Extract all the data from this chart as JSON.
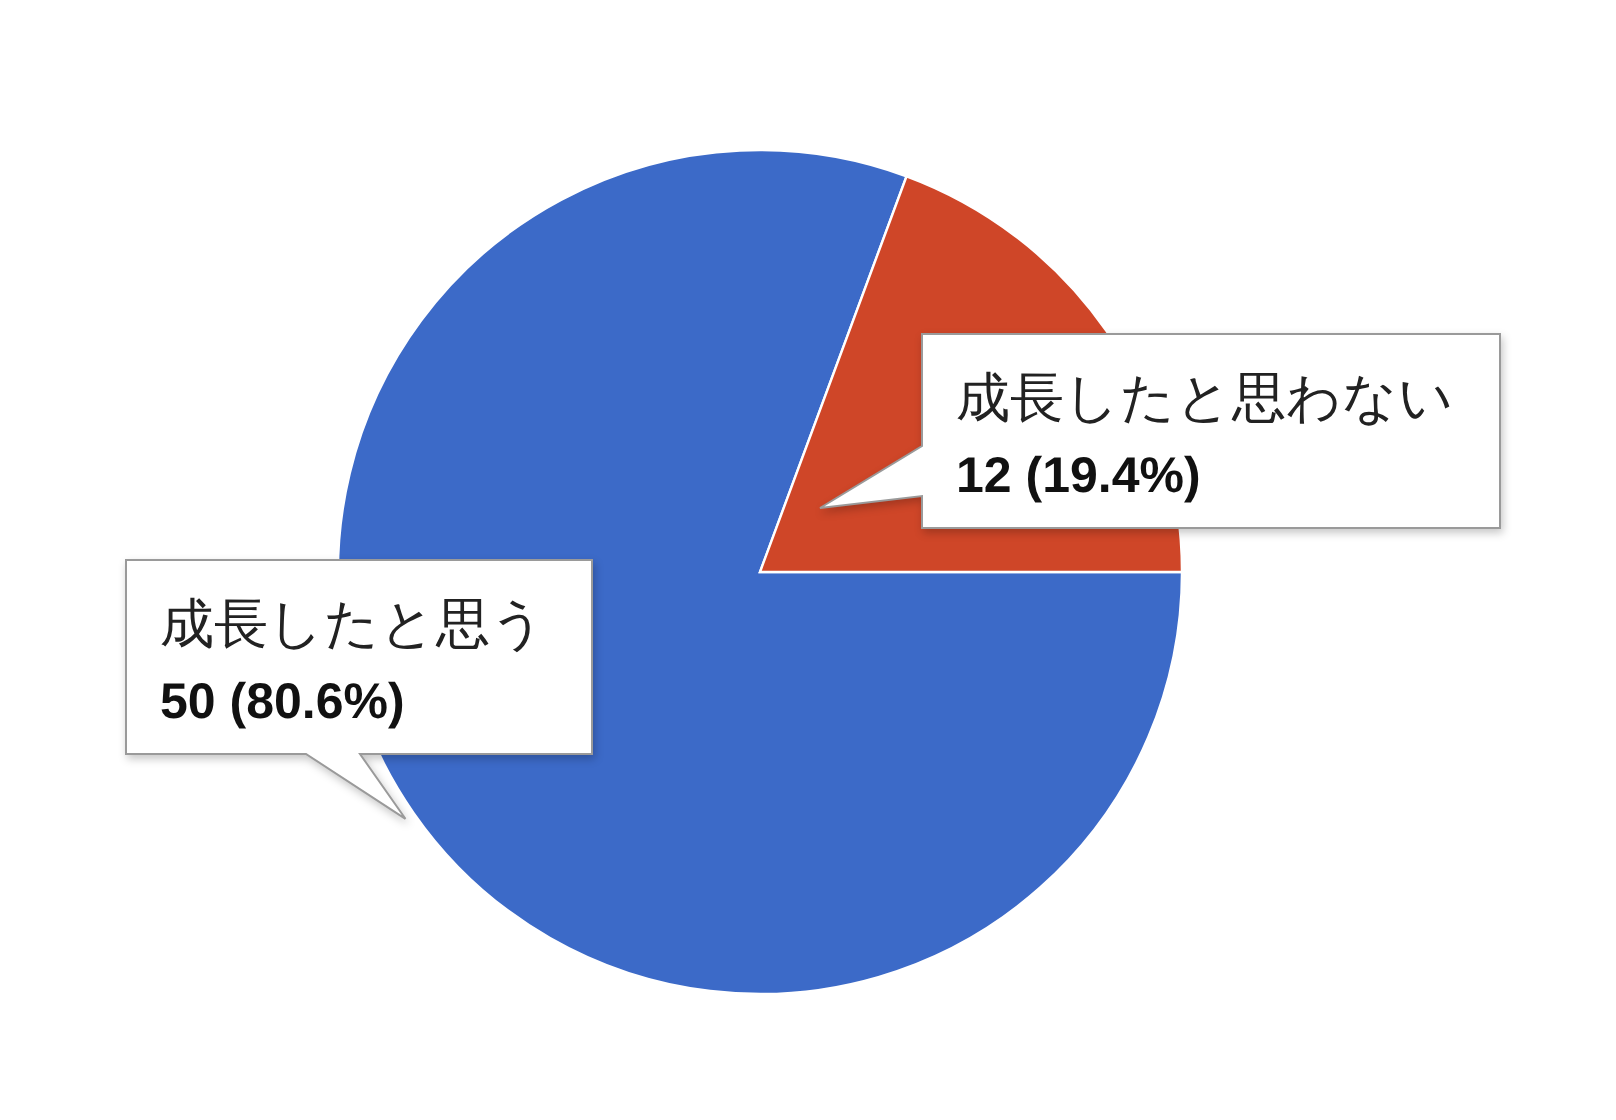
{
  "chart_data": {
    "type": "pie",
    "categories": [
      "成長したと思う",
      "成長したと思わない"
    ],
    "values": [
      50,
      12
    ],
    "colors": [
      "#3c6ac8",
      "#cf4628"
    ],
    "value_labels": [
      "50 (80.6%)",
      "12 (19.4%)"
    ]
  }
}
